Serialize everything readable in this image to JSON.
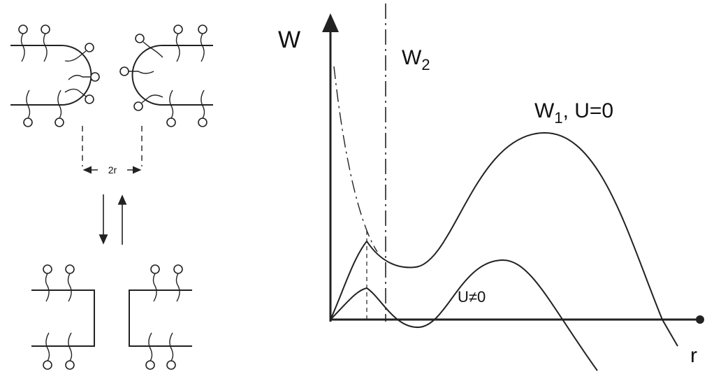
{
  "left_panel": {
    "separation_label": "2r"
  },
  "energy_plot": {
    "y_axis_label": "W",
    "x_axis_label": "r",
    "curves": [
      {
        "label": "W",
        "subscript": "2"
      },
      {
        "label": "W",
        "subscript": "1",
        "annotation": ", U=0"
      },
      {
        "label": "U≠0"
      }
    ]
  }
}
